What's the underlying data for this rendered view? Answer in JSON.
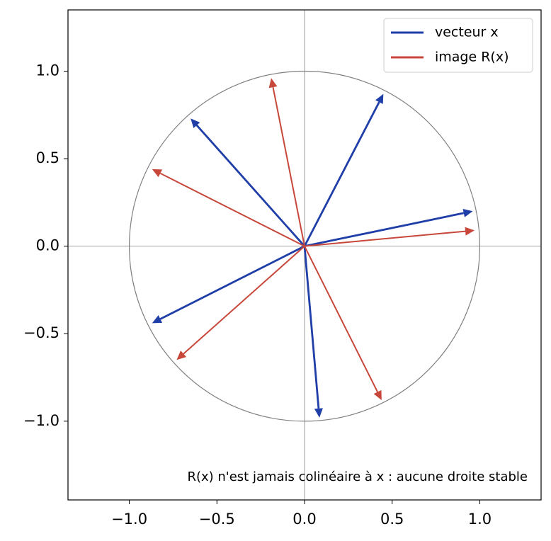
{
  "chart_data": {
    "type": "quiver",
    "xlim": [
      -1.35,
      1.35
    ],
    "ylim": [
      -1.45,
      1.35
    ],
    "xticks": [
      {
        "value": -1,
        "label": "−1.0"
      },
      {
        "value": -0.5,
        "label": "−0.5"
      },
      {
        "value": 0,
        "label": "0.0"
      },
      0.5,
      {
        "value": 1,
        "label": "1.0"
      }
    ],
    "yticks": [
      {
        "value": -1,
        "label": "−1.0"
      },
      {
        "value": -0.5,
        "label": "−0.5"
      },
      {
        "value": 0,
        "label": "0.0"
      },
      0.5,
      {
        "value": 1,
        "label": "1.0"
      }
    ],
    "legend": "upper right",
    "series": [
      {
        "name": "vecteur x",
        "color": "#1f3ea8",
        "u": [
          0.45,
          0.96,
          -0.65,
          -0.87,
          0.085
        ],
        "v": [
          0.87,
          0.2,
          0.73,
          -0.44,
          -0.98
        ]
      },
      {
        "name": "image R(x)",
        "color": "#c8473b",
        "u": [
          -0.19,
          0.97,
          -0.87,
          -0.73,
          0.44
        ],
        "v": [
          0.96,
          0.09,
          0.44,
          -0.65,
          -0.88
        ]
      }
    ],
    "annotation": "R(x) n'est jamais colinéaire à x : aucune droite stable"
  }
}
